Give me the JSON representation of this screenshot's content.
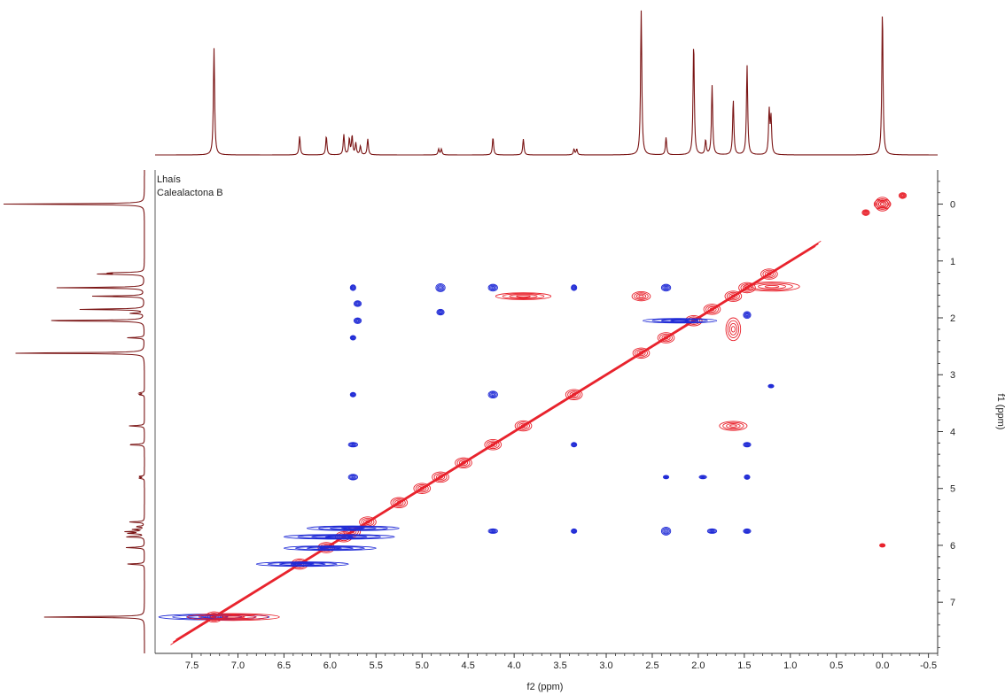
{
  "chart_data": {
    "type": "heatmap",
    "subtype": "2D NMR NOESY/ROESY contour plot with projections",
    "sample_labels": [
      "Lhaís",
      "Calealactona B"
    ],
    "xlabel": "f2 (ppm)",
    "ylabel": "f1 (ppm)",
    "xlim": [
      7.9,
      -0.6
    ],
    "ylim": [
      -0.6,
      7.9
    ],
    "x_reversed": true,
    "y_downward_increasing": true,
    "x_ticks": [
      "7.5",
      "7.0",
      "6.5",
      "6.0",
      "5.5",
      "5.0",
      "4.5",
      "4.0",
      "3.5",
      "3.0",
      "2.5",
      "2.0",
      "1.5",
      "1.0",
      "0.5",
      "0.0",
      "-0.5"
    ],
    "y_ticks": [
      "0",
      "1",
      "2",
      "3",
      "4",
      "5",
      "6",
      "7"
    ],
    "colors": {
      "positive": "#e8202a",
      "negative": "#1f2ad6",
      "projection": "#7a1414",
      "axis": "#333333"
    },
    "projection_1d": {
      "peaks": [
        {
          "ppm": 7.26,
          "height": 0.74
        },
        {
          "ppm": 6.33,
          "height": 0.13
        },
        {
          "ppm": 6.04,
          "height": 0.13
        },
        {
          "ppm": 5.85,
          "height": 0.14
        },
        {
          "ppm": 5.79,
          "height": 0.11
        },
        {
          "ppm": 5.76,
          "height": 0.13
        },
        {
          "ppm": 5.72,
          "height": 0.08
        },
        {
          "ppm": 5.67,
          "height": 0.06
        },
        {
          "ppm": 5.59,
          "height": 0.11
        },
        {
          "ppm": 4.82,
          "height": 0.04
        },
        {
          "ppm": 4.79,
          "height": 0.04
        },
        {
          "ppm": 4.23,
          "height": 0.12
        },
        {
          "ppm": 3.9,
          "height": 0.11
        },
        {
          "ppm": 3.35,
          "height": 0.04
        },
        {
          "ppm": 3.32,
          "height": 0.04
        },
        {
          "ppm": 2.62,
          "height": 1.0
        },
        {
          "ppm": 2.35,
          "height": 0.12
        },
        {
          "ppm": 2.05,
          "height": 0.78
        },
        {
          "ppm": 1.92,
          "height": 0.1
        },
        {
          "ppm": 1.85,
          "height": 0.48
        },
        {
          "ppm": 1.62,
          "height": 0.38
        },
        {
          "ppm": 1.47,
          "height": 0.62
        },
        {
          "ppm": 1.23,
          "height": 0.3
        },
        {
          "ppm": 1.21,
          "height": 0.25
        },
        {
          "ppm": 0.0,
          "height": 1.0
        }
      ]
    },
    "diagonal_peaks": [
      7.26,
      6.33,
      6.04,
      5.85,
      5.76,
      5.59,
      5.25,
      5.0,
      4.8,
      4.55,
      4.23,
      3.9,
      3.35,
      2.62,
      2.35,
      2.05,
      1.85,
      1.62,
      1.47,
      1.23,
      0.0
    ],
    "cross_peaks": [
      {
        "x": 7.26,
        "y": 7.26,
        "sign": "negative",
        "width": 0.6,
        "height": 0.05
      },
      {
        "x": 7.05,
        "y": 7.26,
        "sign": "positive",
        "width": 0.5,
        "height": 0.06
      },
      {
        "x": 6.3,
        "y": 6.33,
        "sign": "negative",
        "width": 0.5,
        "height": 0.04
      },
      {
        "x": 6.0,
        "y": 6.05,
        "sign": "negative",
        "width": 0.5,
        "height": 0.04
      },
      {
        "x": 5.9,
        "y": 5.85,
        "sign": "negative",
        "width": 0.6,
        "height": 0.04
      },
      {
        "x": 5.75,
        "y": 5.7,
        "sign": "negative",
        "width": 0.5,
        "height": 0.04
      },
      {
        "x": 5.75,
        "y": 1.47,
        "sign": "negative",
        "width": 0.03,
        "height": 0.05
      },
      {
        "x": 5.75,
        "y": 2.35,
        "sign": "negative",
        "width": 0.03,
        "height": 0.04
      },
      {
        "x": 5.75,
        "y": 3.35,
        "sign": "negative",
        "width": 0.03,
        "height": 0.04
      },
      {
        "x": 5.75,
        "y": 4.23,
        "sign": "negative",
        "width": 0.05,
        "height": 0.04
      },
      {
        "x": 5.75,
        "y": 4.8,
        "sign": "negative",
        "width": 0.05,
        "height": 0.05
      },
      {
        "x": 5.7,
        "y": 1.75,
        "sign": "negative",
        "width": 0.04,
        "height": 0.05
      },
      {
        "x": 5.7,
        "y": 2.05,
        "sign": "negative",
        "width": 0.04,
        "height": 0.05
      },
      {
        "x": 4.8,
        "y": 1.47,
        "sign": "negative",
        "width": 0.05,
        "height": 0.07
      },
      {
        "x": 4.8,
        "y": 1.9,
        "sign": "negative",
        "width": 0.04,
        "height": 0.05
      },
      {
        "x": 4.23,
        "y": 1.47,
        "sign": "negative",
        "width": 0.05,
        "height": 0.06
      },
      {
        "x": 4.23,
        "y": 3.35,
        "sign": "negative",
        "width": 0.05,
        "height": 0.06
      },
      {
        "x": 4.23,
        "y": 5.75,
        "sign": "negative",
        "width": 0.05,
        "height": 0.04
      },
      {
        "x": 3.9,
        "y": 1.62,
        "sign": "positive",
        "width": 0.3,
        "height": 0.06
      },
      {
        "x": 3.35,
        "y": 1.47,
        "sign": "negative",
        "width": 0.03,
        "height": 0.05
      },
      {
        "x": 3.35,
        "y": 4.23,
        "sign": "negative",
        "width": 0.03,
        "height": 0.04
      },
      {
        "x": 3.35,
        "y": 5.75,
        "sign": "negative",
        "width": 0.03,
        "height": 0.04
      },
      {
        "x": 2.62,
        "y": 1.62,
        "sign": "positive",
        "width": 0.1,
        "height": 0.08
      },
      {
        "x": 2.35,
        "y": 1.47,
        "sign": "negative",
        "width": 0.05,
        "height": 0.06
      },
      {
        "x": 2.35,
        "y": 4.8,
        "sign": "negative",
        "width": 0.03,
        "height": 0.03
      },
      {
        "x": 2.35,
        "y": 5.75,
        "sign": "negative",
        "width": 0.05,
        "height": 0.07
      },
      {
        "x": 2.2,
        "y": 2.05,
        "sign": "negative",
        "width": 0.4,
        "height": 0.04
      },
      {
        "x": 1.95,
        "y": 4.8,
        "sign": "negative",
        "width": 0.04,
        "height": 0.03
      },
      {
        "x": 1.85,
        "y": 5.75,
        "sign": "negative",
        "width": 0.05,
        "height": 0.04
      },
      {
        "x": 1.62,
        "y": 2.2,
        "sign": "positive",
        "width": 0.08,
        "height": 0.2
      },
      {
        "x": 1.62,
        "y": 3.9,
        "sign": "positive",
        "width": 0.15,
        "height": 0.08
      },
      {
        "x": 1.47,
        "y": 1.95,
        "sign": "negative",
        "width": 0.04,
        "height": 0.06
      },
      {
        "x": 1.47,
        "y": 4.23,
        "sign": "negative",
        "width": 0.04,
        "height": 0.04
      },
      {
        "x": 1.47,
        "y": 4.8,
        "sign": "negative",
        "width": 0.03,
        "height": 0.04
      },
      {
        "x": 1.47,
        "y": 5.75,
        "sign": "negative",
        "width": 0.04,
        "height": 0.04
      },
      {
        "x": 1.2,
        "y": 1.45,
        "sign": "positive",
        "width": 0.3,
        "height": 0.08
      },
      {
        "x": 1.21,
        "y": 3.2,
        "sign": "negative",
        "width": 0.03,
        "height": 0.03
      },
      {
        "x": 0.0,
        "y": 0.0,
        "sign": "positive",
        "width": 0.08,
        "height": 0.12
      },
      {
        "x": 0.0,
        "y": 6.0,
        "sign": "positive",
        "width": 0.03,
        "height": 0.03
      },
      {
        "x": -0.22,
        "y": -0.15,
        "sign": "positive",
        "width": 0.04,
        "height": 0.05
      },
      {
        "x": 0.18,
        "y": 0.15,
        "sign": "positive",
        "width": 0.04,
        "height": 0.05
      }
    ]
  }
}
